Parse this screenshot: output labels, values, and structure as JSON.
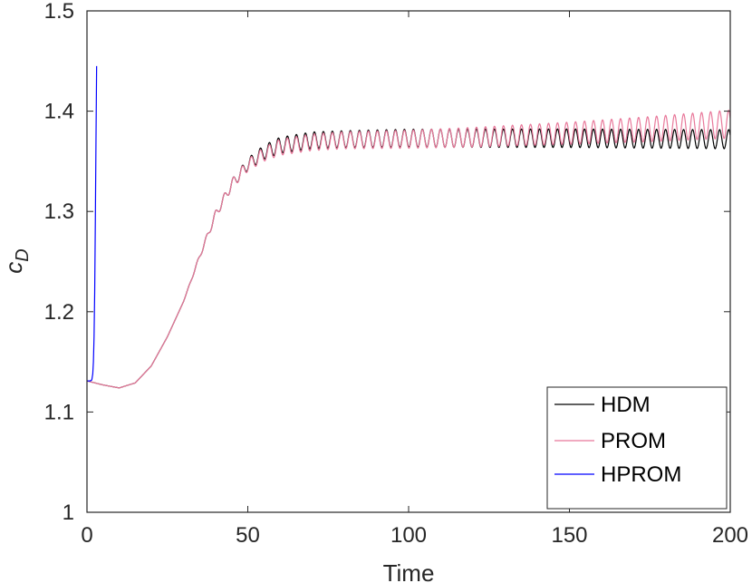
{
  "chart_data": {
    "type": "line",
    "xlabel": "Time",
    "ylabel": "c",
    "ylabel_sub": "D",
    "xlim": [
      0,
      200
    ],
    "ylim": [
      1,
      1.5
    ],
    "xticks": [
      "0",
      "50",
      "100",
      "150",
      "200"
    ],
    "yticks": [
      "1",
      "1.1",
      "1.2",
      "1.3",
      "1.4",
      "1.5"
    ],
    "grid": false,
    "legend_position": "bottom-right",
    "series": [
      {
        "name": "HDM",
        "color": "#000000",
        "base": [
          [
            0,
            1.131
          ],
          [
            5,
            1.127
          ],
          [
            10,
            1.124
          ],
          [
            15,
            1.129
          ],
          [
            20,
            1.146
          ],
          [
            25,
            1.175
          ],
          [
            30,
            1.21
          ],
          [
            35,
            1.255
          ],
          [
            40,
            1.297
          ],
          [
            45,
            1.327
          ],
          [
            50,
            1.347
          ],
          [
            55,
            1.359
          ],
          [
            60,
            1.366
          ],
          [
            70,
            1.371
          ],
          [
            80,
            1.372
          ],
          [
            100,
            1.373
          ],
          [
            150,
            1.373
          ],
          [
            200,
            1.372
          ]
        ],
        "oscillation": {
          "period": 2.8,
          "amp": [
            [
              30,
              0.0
            ],
            [
              40,
              0.004
            ],
            [
              50,
              0.006
            ],
            [
              60,
              0.008
            ],
            [
              100,
              0.009
            ],
            [
              200,
              0.0095
            ]
          ]
        }
      },
      {
        "name": "PROM",
        "color": "#e8789a",
        "base": [
          [
            0,
            1.131
          ],
          [
            5,
            1.127
          ],
          [
            10,
            1.124
          ],
          [
            15,
            1.129
          ],
          [
            20,
            1.146
          ],
          [
            25,
            1.175
          ],
          [
            30,
            1.21
          ],
          [
            35,
            1.255
          ],
          [
            40,
            1.297
          ],
          [
            45,
            1.327
          ],
          [
            50,
            1.346
          ],
          [
            55,
            1.357
          ],
          [
            60,
            1.364
          ],
          [
            70,
            1.369
          ],
          [
            80,
            1.371
          ],
          [
            100,
            1.372
          ],
          [
            120,
            1.374
          ],
          [
            150,
            1.378
          ],
          [
            175,
            1.382
          ],
          [
            200,
            1.387
          ]
        ],
        "oscillation": {
          "period": 2.8,
          "amp": [
            [
              30,
              0.0
            ],
            [
              40,
              0.004
            ],
            [
              50,
              0.006
            ],
            [
              60,
              0.008
            ],
            [
              100,
              0.009
            ],
            [
              150,
              0.011
            ],
            [
              200,
              0.014
            ]
          ]
        }
      },
      {
        "name": "HPROM",
        "color": "#0000ff",
        "points": [
          [
            0,
            1.131
          ],
          [
            0.5,
            1.131
          ],
          [
            1.0,
            1.131
          ],
          [
            1.5,
            1.132
          ],
          [
            1.8,
            1.138
          ],
          [
            2.0,
            1.15
          ],
          [
            2.2,
            1.175
          ],
          [
            2.4,
            1.22
          ],
          [
            2.6,
            1.29
          ],
          [
            2.8,
            1.37
          ],
          [
            3.0,
            1.445
          ]
        ]
      }
    ]
  }
}
